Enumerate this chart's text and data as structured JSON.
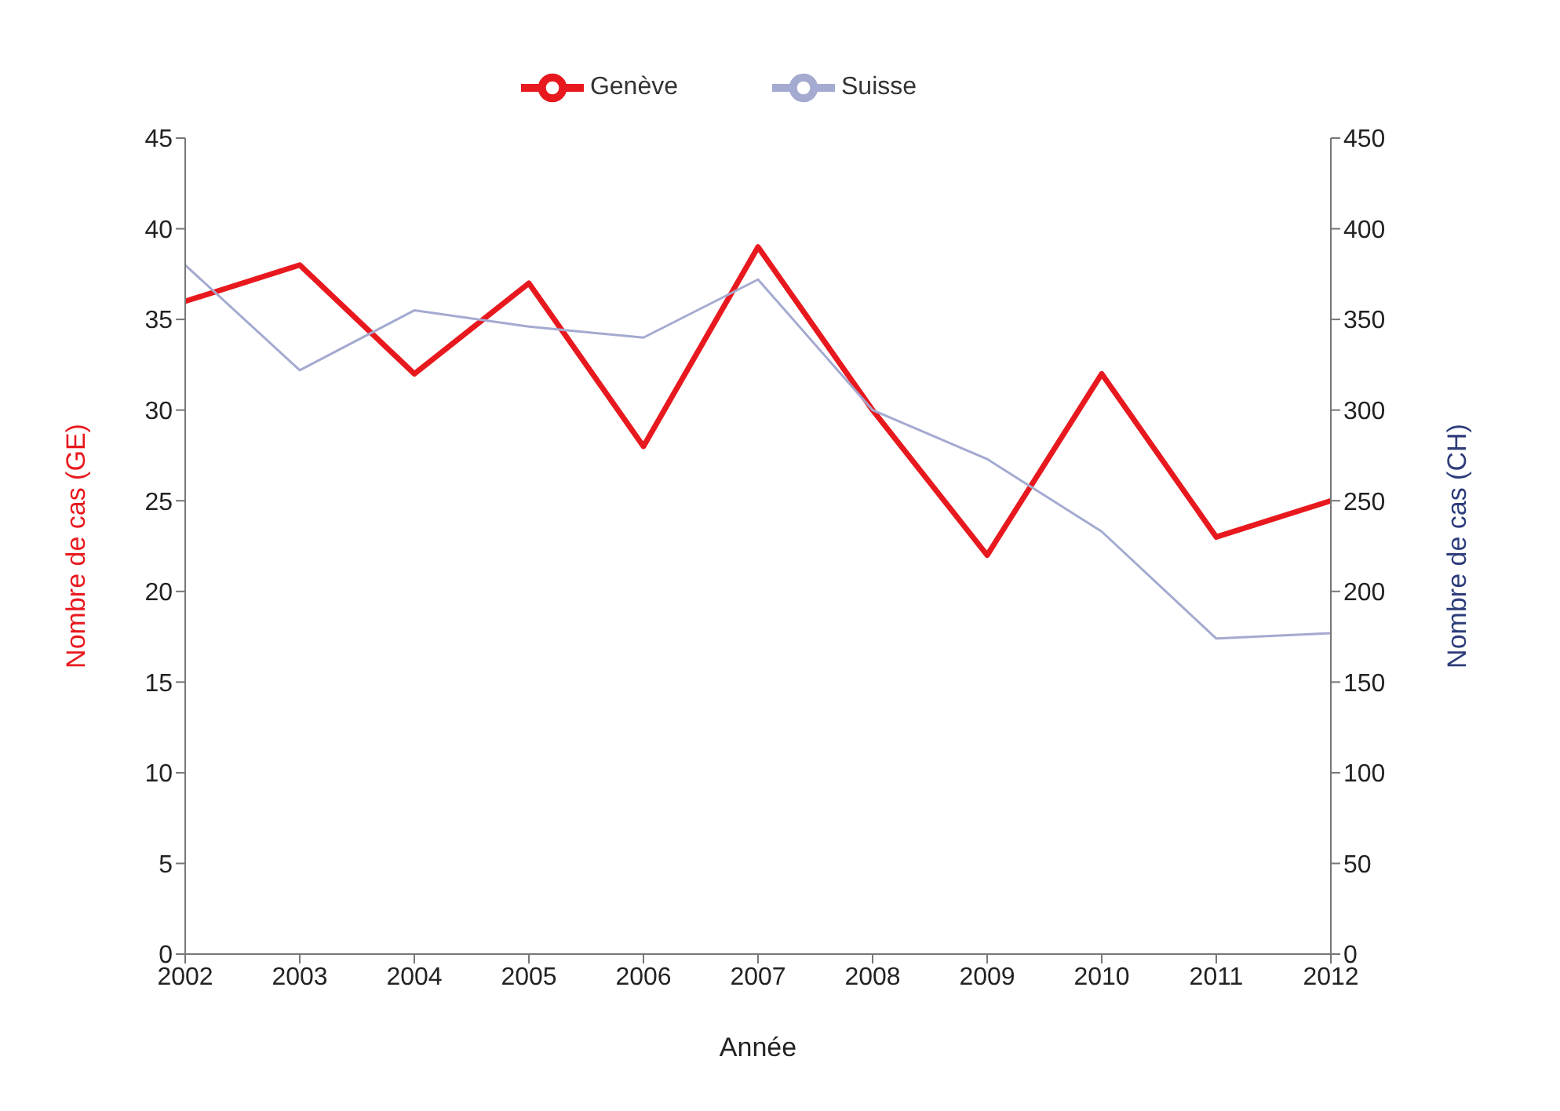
{
  "chart_data": {
    "type": "line",
    "xlabel": "Année",
    "ylabel": "Nombre de cas  (GE)",
    "y2label": "Nombre de cas (CH)",
    "categories": [
      "2002",
      "2003",
      "2004",
      "2005",
      "2006",
      "2007",
      "2008",
      "2009",
      "2010",
      "2011",
      "2012"
    ],
    "series": [
      {
        "name": "Genève",
        "color": "#e8191e",
        "values": [
          36,
          38,
          32,
          37,
          28,
          39,
          30,
          22,
          32,
          23,
          25
        ]
      },
      {
        "name": "Suisse",
        "color": "#a4aad0",
        "axis": "y2",
        "values": [
          380,
          322,
          355,
          346,
          340,
          372,
          300,
          273,
          233,
          174,
          177
        ]
      }
    ],
    "ylim": [
      0,
      45
    ],
    "yticks": [
      0,
      5,
      10,
      15,
      20,
      25,
      30,
      35,
      40,
      45
    ],
    "y2lim": [
      0,
      450
    ],
    "y2ticks": [
      0,
      50,
      100,
      150,
      200,
      250,
      300,
      350,
      400,
      450
    ],
    "grid": false,
    "legend": "top",
    "marker": "none",
    "line_style": "solid"
  }
}
